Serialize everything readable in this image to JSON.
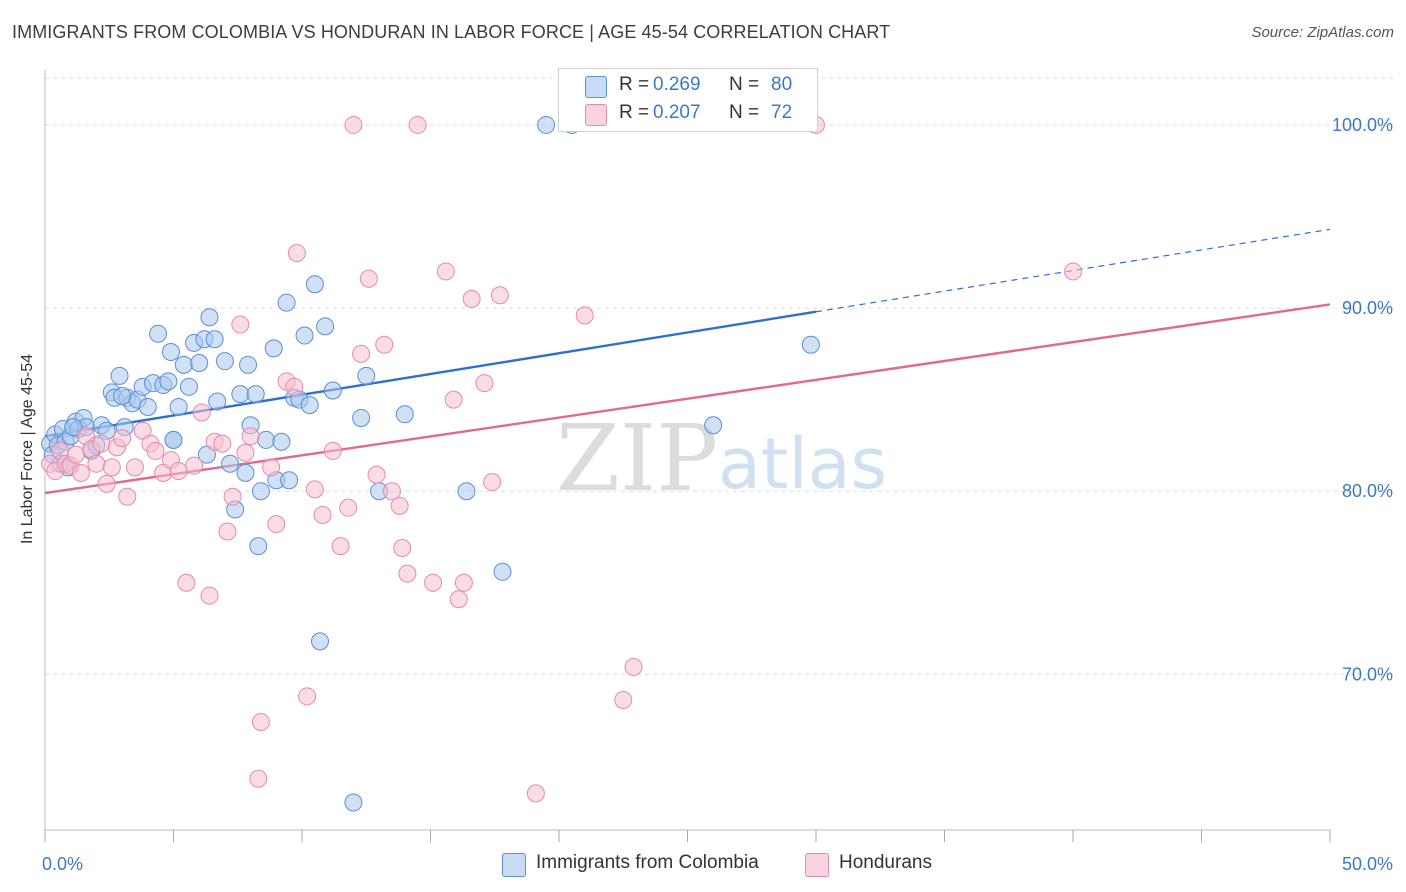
{
  "header": {
    "title": "IMMIGRANTS FROM COLOMBIA VS HONDURAN IN LABOR FORCE | AGE 45-54 CORRELATION CHART",
    "source": "Source: ZipAtlas.com"
  },
  "watermark": {
    "zip": "ZIP",
    "atlas": "atlas"
  },
  "legend_top": {
    "rows": [
      {
        "r_label": "R =",
        "r_value": "0.269",
        "n_label": "N =",
        "n_value": "80"
      },
      {
        "r_label": "R =",
        "r_value": "0.207",
        "n_label": "N =",
        "n_value": "72"
      }
    ]
  },
  "legend_bottom": {
    "items": [
      {
        "label": "Immigrants from Colombia"
      },
      {
        "label": "Hondurans"
      }
    ]
  },
  "colors": {
    "blue_fill": "#aac8ec",
    "blue_stroke": "#5b8fd6",
    "blue_line": "#2f6fd0",
    "pink_fill": "#f6bfd2",
    "pink_stroke": "#e78aaa",
    "pink_line": "#e06892",
    "grid": "#dddddd",
    "axis_text": "#3d78c8",
    "tick": "#aaaaaa"
  },
  "chart_data": {
    "type": "scatter",
    "title": "IMMIGRANTS FROM COLOMBIA VS HONDURAN IN LABOR FORCE | AGE 45-54 CORRELATION CHART",
    "xlabel": "",
    "ylabel": "In Labor Force | Age 45-54",
    "xlim": [
      0,
      50
    ],
    "ylim": [
      61.5,
      103
    ],
    "x_tick_labels": [
      {
        "value": 0,
        "label": "0.0%"
      },
      {
        "value": 50,
        "label": "50.0%"
      }
    ],
    "y_tick_labels": [
      {
        "value": 70,
        "label": "70.0%"
      },
      {
        "value": 80,
        "label": "80.0%"
      },
      {
        "value": 90,
        "label": "90.0%"
      },
      {
        "value": 100,
        "label": "100.0%"
      }
    ],
    "grid": true,
    "series": [
      {
        "name": "Immigrants from Colombia",
        "color": "blue",
        "r": 0.269,
        "n": 80,
        "trend": {
          "x0": 0,
          "y0": 83.0,
          "x1": 30,
          "y1": 89.8,
          "dash_x1": 50,
          "dash_y1": 94.3
        },
        "points": [
          [
            0.2,
            82.6
          ],
          [
            0.3,
            82.0
          ],
          [
            0.4,
            83.1
          ],
          [
            0.5,
            82.5
          ],
          [
            0.6,
            81.5
          ],
          [
            0.7,
            83.4
          ],
          [
            0.8,
            82.7
          ],
          [
            0.9,
            81.3
          ],
          [
            1.0,
            83.0
          ],
          [
            1.2,
            83.8
          ],
          [
            1.3,
            83.4
          ],
          [
            1.5,
            84.0
          ],
          [
            1.6,
            83.5
          ],
          [
            1.8,
            82.2
          ],
          [
            2.0,
            82.5
          ],
          [
            2.2,
            83.6
          ],
          [
            2.4,
            83.3
          ],
          [
            2.6,
            85.4
          ],
          [
            2.7,
            85.1
          ],
          [
            2.9,
            86.3
          ],
          [
            3.1,
            83.5
          ],
          [
            3.2,
            85.1
          ],
          [
            3.4,
            84.8
          ],
          [
            3.6,
            85.0
          ],
          [
            3.8,
            85.7
          ],
          [
            4.0,
            84.6
          ],
          [
            4.2,
            85.9
          ],
          [
            4.4,
            88.6
          ],
          [
            4.6,
            85.8
          ],
          [
            4.8,
            86.0
          ],
          [
            4.9,
            87.6
          ],
          [
            5.0,
            82.8
          ],
          [
            5.2,
            84.6
          ],
          [
            5.4,
            86.9
          ],
          [
            5.6,
            85.7
          ],
          [
            5.8,
            88.1
          ],
          [
            6.0,
            87.0
          ],
          [
            6.2,
            88.3
          ],
          [
            6.3,
            82.0
          ],
          [
            6.4,
            89.5
          ],
          [
            6.6,
            88.3
          ],
          [
            6.7,
            84.9
          ],
          [
            7.0,
            87.1
          ],
          [
            7.2,
            81.5
          ],
          [
            7.4,
            79.0
          ],
          [
            7.6,
            85.3
          ],
          [
            7.8,
            81.0
          ],
          [
            7.9,
            86.9
          ],
          [
            8.0,
            83.6
          ],
          [
            8.2,
            85.3
          ],
          [
            8.3,
            77.0
          ],
          [
            8.4,
            80.0
          ],
          [
            8.6,
            82.8
          ],
          [
            8.9,
            87.8
          ],
          [
            9.0,
            80.6
          ],
          [
            9.2,
            82.7
          ],
          [
            9.4,
            90.3
          ],
          [
            9.5,
            80.6
          ],
          [
            9.7,
            85.1
          ],
          [
            9.9,
            85.0
          ],
          [
            10.1,
            88.5
          ],
          [
            10.3,
            84.7
          ],
          [
            10.5,
            91.3
          ],
          [
            10.7,
            71.8
          ],
          [
            10.9,
            89.0
          ],
          [
            11.2,
            85.5
          ],
          [
            12.0,
            63.0
          ],
          [
            12.3,
            84.0
          ],
          [
            12.5,
            86.3
          ],
          [
            13.0,
            80.0
          ],
          [
            14.0,
            84.2
          ],
          [
            16.4,
            80.0
          ],
          [
            17.8,
            75.6
          ],
          [
            19.5,
            100.0
          ],
          [
            20.5,
            100.0
          ],
          [
            26.0,
            83.6
          ],
          [
            29.8,
            88.0
          ],
          [
            5.0,
            82.8
          ],
          [
            3.0,
            85.2
          ],
          [
            1.1,
            83.5
          ]
        ]
      },
      {
        "name": "Hondurans",
        "color": "pink",
        "r": 0.207,
        "n": 72,
        "trend": {
          "x0": 0,
          "y0": 79.9,
          "x1": 50,
          "y1": 90.2
        },
        "points": [
          [
            0.2,
            81.5
          ],
          [
            0.4,
            81.1
          ],
          [
            0.6,
            82.2
          ],
          [
            0.8,
            81.5
          ],
          [
            1.0,
            81.4
          ],
          [
            1.2,
            82.0
          ],
          [
            1.4,
            81.0
          ],
          [
            1.6,
            83.0
          ],
          [
            1.8,
            82.3
          ],
          [
            2.0,
            81.5
          ],
          [
            2.2,
            82.6
          ],
          [
            2.4,
            80.4
          ],
          [
            2.6,
            81.3
          ],
          [
            2.8,
            82.4
          ],
          [
            3.0,
            82.9
          ],
          [
            3.2,
            79.7
          ],
          [
            3.5,
            81.3
          ],
          [
            3.8,
            83.3
          ],
          [
            4.1,
            82.6
          ],
          [
            4.3,
            82.2
          ],
          [
            4.6,
            81.0
          ],
          [
            4.9,
            81.7
          ],
          [
            5.2,
            81.1
          ],
          [
            5.5,
            75.0
          ],
          [
            5.8,
            81.4
          ],
          [
            6.1,
            84.3
          ],
          [
            6.4,
            74.3
          ],
          [
            6.6,
            82.7
          ],
          [
            6.9,
            82.6
          ],
          [
            7.1,
            77.8
          ],
          [
            7.3,
            79.7
          ],
          [
            7.6,
            89.1
          ],
          [
            7.8,
            82.1
          ],
          [
            8.0,
            83.0
          ],
          [
            8.3,
            64.3
          ],
          [
            8.4,
            67.4
          ],
          [
            8.8,
            81.3
          ],
          [
            9.0,
            78.2
          ],
          [
            9.4,
            86.0
          ],
          [
            9.7,
            85.7
          ],
          [
            9.8,
            93.0
          ],
          [
            10.2,
            68.8
          ],
          [
            10.5,
            80.1
          ],
          [
            10.8,
            78.7
          ],
          [
            11.2,
            82.2
          ],
          [
            11.5,
            77.0
          ],
          [
            11.8,
            79.1
          ],
          [
            12.3,
            87.5
          ],
          [
            12.6,
            91.6
          ],
          [
            12.9,
            80.9
          ],
          [
            13.2,
            88.0
          ],
          [
            13.5,
            80.0
          ],
          [
            13.8,
            79.2
          ],
          [
            13.9,
            76.9
          ],
          [
            14.1,
            75.5
          ],
          [
            14.5,
            100.0
          ],
          [
            15.1,
            75.0
          ],
          [
            15.6,
            92.0
          ],
          [
            15.9,
            85.0
          ],
          [
            16.1,
            74.1
          ],
          [
            16.3,
            75.0
          ],
          [
            16.6,
            90.5
          ],
          [
            17.1,
            85.9
          ],
          [
            17.4,
            80.5
          ],
          [
            17.7,
            90.7
          ],
          [
            19.1,
            63.5
          ],
          [
            21.0,
            89.6
          ],
          [
            22.5,
            68.6
          ],
          [
            22.9,
            70.4
          ],
          [
            30.0,
            100.0
          ],
          [
            40.0,
            92.0
          ],
          [
            12.0,
            100.0
          ]
        ]
      }
    ]
  }
}
